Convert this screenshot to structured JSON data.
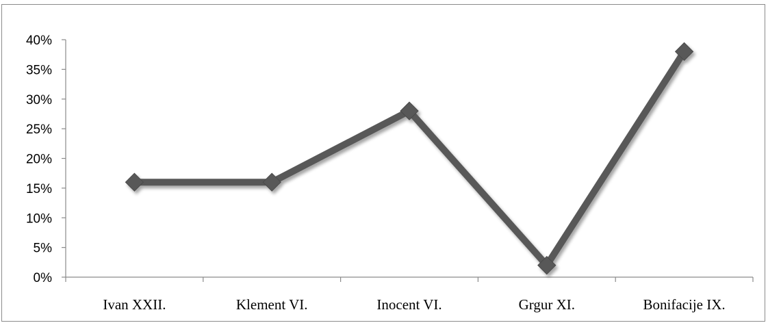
{
  "chart_data": {
    "type": "line",
    "categories": [
      "Ivan XXII.",
      "Klement VI.",
      "Inocent VI.",
      "Grgur XI.",
      "Bonifacije IX."
    ],
    "series": [
      {
        "values": [
          16,
          16,
          28,
          2,
          38
        ]
      }
    ],
    "yticks": [
      "0%",
      "5%",
      "10%",
      "15%",
      "20%",
      "25%",
      "30%",
      "35%",
      "40%"
    ],
    "ylim": [
      0,
      40
    ],
    "grid": false,
    "legend": "none",
    "line_color": "#595959",
    "shadow_color": "#b0b0b0",
    "axis_color": "#8a8a8a"
  }
}
